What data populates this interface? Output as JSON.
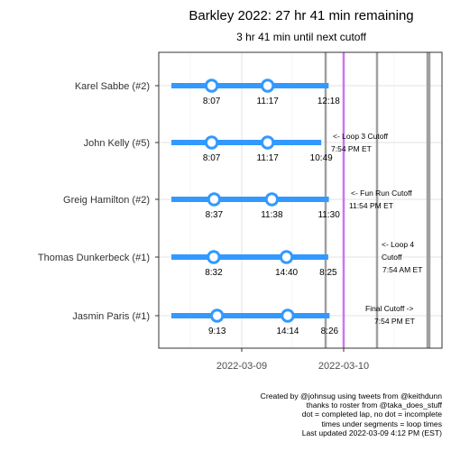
{
  "chart_data": {
    "type": "line",
    "title": "Barkley 2022: 27 hr 41 min remaining",
    "subtitle": "3 hr 41 min until next cutoff",
    "xlabel": "",
    "ylabel": "",
    "x_tick_labels": [
      "2022-03-09",
      "2022-03-10"
    ],
    "grid": true,
    "legend": "none",
    "colors": {
      "segment": "#3399FF",
      "marker": "#3399FF",
      "current_time": "#CC77EE",
      "cutoff": "#A0A0A0",
      "panel_border": "#333333"
    },
    "runners": [
      {
        "name": "Karel Sabbe (#2)",
        "laps": [
          "8:07",
          "11:17"
        ],
        "current": "12:18"
      },
      {
        "name": "John Kelly (#5)",
        "laps": [
          "8:07",
          "11:17"
        ],
        "current": "10:49"
      },
      {
        "name": "Greig Hamilton (#2)",
        "laps": [
          "8:37",
          "11:38"
        ],
        "current": "11:30"
      },
      {
        "name": "Thomas Dunkerbeck (#1)",
        "laps": [
          "8:32",
          "14:40"
        ],
        "current": "8:25"
      },
      {
        "name": "Jasmin Paris (#1)",
        "laps": [
          "9:13",
          "14:14"
        ],
        "current": "8:26"
      }
    ],
    "cutoffs": [
      {
        "label_lines": [
          "<- Loop 3 Cutoff",
          "7:54 PM ET"
        ]
      },
      {
        "label_lines": [
          "<- Fun Run Cutoff",
          "11:54 PM ET"
        ]
      },
      {
        "label_lines": [
          "<- Loop 4",
          "Cutoff",
          "7:54 AM ET"
        ]
      },
      {
        "label_lines": [
          "Final Cutoff ->",
          "7:54 PM ET"
        ]
      }
    ]
  },
  "caption": [
    "Created by @johnsug using tweets from @keithdunn",
    "thanks to roster from @taka_does_stuff",
    "dot = completed lap, no dot = incomplete",
    "times under segments = loop times",
    "Last updated 2022-03-09 4:12 PM (EST)"
  ]
}
